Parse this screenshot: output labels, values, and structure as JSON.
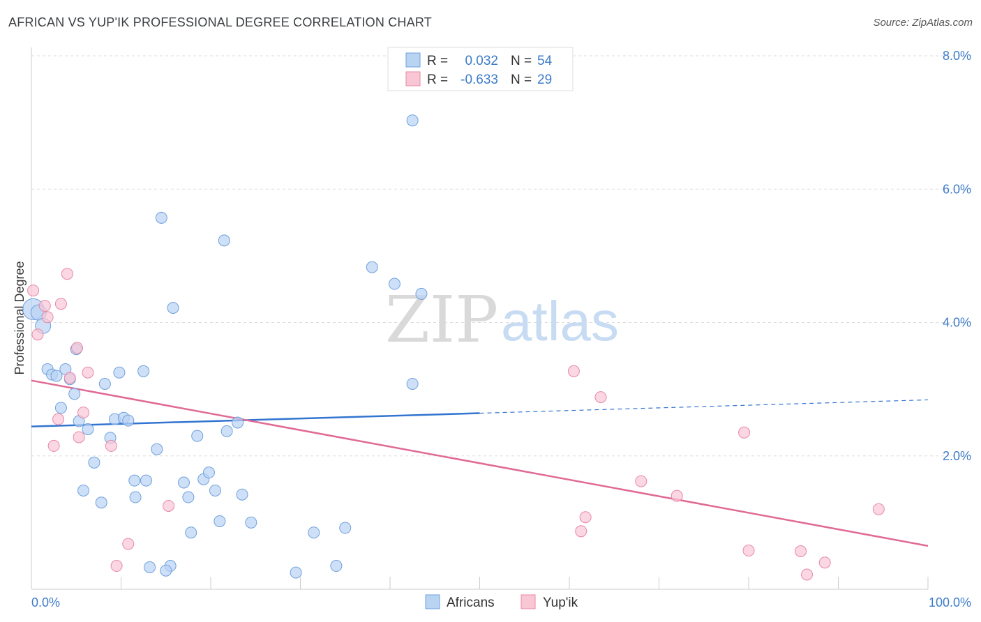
{
  "header": {
    "title": "AFRICAN VS YUP'IK PROFESSIONAL DEGREE CORRELATION CHART",
    "source": "Source: ZipAtlas.com"
  },
  "watermark": {
    "zip": "ZIP",
    "atlas": "atlas"
  },
  "colors": {
    "africans_fill": "#b9d3f3",
    "africans_stroke": "#6fa0dc",
    "africans_line": "#3274d0",
    "yupik_fill": "#f8c6d5",
    "yupik_stroke": "#e889a6",
    "yupik_line": "#e06a95",
    "tick": "#3d7cc9",
    "grid": "#dddddd"
  },
  "legend": {
    "rows": [
      {
        "r_label": "R =",
        "r_value": "0.032",
        "n_label": "N =",
        "n_value": "54"
      },
      {
        "r_label": "R =",
        "r_value": "-0.633",
        "n_label": "N =",
        "n_value": "29"
      }
    ]
  },
  "chart_data": {
    "type": "scatter",
    "title": "AFRICAN VS YUP'IK PROFESSIONAL DEGREE CORRELATION CHART",
    "xlabel": "",
    "ylabel": "Professional Degree",
    "xlim": [
      0,
      100
    ],
    "ylim": [
      0,
      8
    ],
    "x_tick_labels": [
      "0.0%",
      "100.0%"
    ],
    "y_ticks": [
      2,
      4,
      6,
      8
    ],
    "y_tick_labels": [
      "2.0%",
      "4.0%",
      "6.0%",
      "8.0%"
    ],
    "grid": true,
    "series": [
      {
        "name": "Africans",
        "trend": {
          "x": [
            0,
            50,
            100
          ],
          "y": [
            2.44,
            2.64,
            2.84
          ],
          "solid_until": 50
        },
        "points": [
          [
            0.2,
            4.2
          ],
          [
            0.8,
            4.15
          ],
          [
            1.3,
            3.95
          ],
          [
            1.8,
            3.3
          ],
          [
            2.3,
            3.22
          ],
          [
            2.8,
            3.2
          ],
          [
            3.3,
            2.72
          ],
          [
            3.8,
            3.3
          ],
          [
            4.3,
            3.15
          ],
          [
            4.8,
            2.93
          ],
          [
            5.0,
            3.6
          ],
          [
            5.3,
            2.52
          ],
          [
            5.8,
            1.48
          ],
          [
            6.3,
            2.4
          ],
          [
            7.0,
            1.9
          ],
          [
            7.8,
            1.3
          ],
          [
            8.2,
            3.08
          ],
          [
            8.8,
            2.27
          ],
          [
            9.3,
            2.55
          ],
          [
            9.8,
            3.25
          ],
          [
            10.3,
            2.57
          ],
          [
            10.8,
            2.53
          ],
          [
            11.5,
            1.63
          ],
          [
            11.6,
            1.38
          ],
          [
            12.5,
            3.27
          ],
          [
            12.8,
            1.63
          ],
          [
            13.2,
            0.33
          ],
          [
            14.0,
            2.1
          ],
          [
            14.5,
            5.57
          ],
          [
            15.5,
            0.35
          ],
          [
            15.0,
            0.28
          ],
          [
            15.8,
            4.22
          ],
          [
            17.0,
            1.6
          ],
          [
            17.5,
            1.38
          ],
          [
            17.8,
            0.85
          ],
          [
            18.5,
            2.3
          ],
          [
            19.2,
            1.65
          ],
          [
            19.8,
            1.75
          ],
          [
            20.5,
            1.48
          ],
          [
            21.0,
            1.02
          ],
          [
            21.5,
            5.23
          ],
          [
            21.8,
            2.37
          ],
          [
            23.0,
            2.5
          ],
          [
            23.5,
            1.42
          ],
          [
            24.5,
            1.0
          ],
          [
            29.5,
            0.25
          ],
          [
            31.5,
            0.85
          ],
          [
            34.0,
            0.35
          ],
          [
            35.0,
            0.92
          ],
          [
            38.0,
            4.83
          ],
          [
            40.5,
            4.58
          ],
          [
            42.5,
            3.08
          ],
          [
            42.5,
            7.03
          ],
          [
            43.5,
            4.43
          ]
        ]
      },
      {
        "name": "Yup'ik",
        "trend": {
          "x": [
            0,
            100
          ],
          "y": [
            3.13,
            0.65
          ]
        },
        "points": [
          [
            0.2,
            4.48
          ],
          [
            0.7,
            3.82
          ],
          [
            1.5,
            4.25
          ],
          [
            1.8,
            4.08
          ],
          [
            2.5,
            2.15
          ],
          [
            3.0,
            2.55
          ],
          [
            3.3,
            4.28
          ],
          [
            4.0,
            4.73
          ],
          [
            4.3,
            3.17
          ],
          [
            5.1,
            3.62
          ],
          [
            5.3,
            2.28
          ],
          [
            5.8,
            2.65
          ],
          [
            6.3,
            3.25
          ],
          [
            8.9,
            2.15
          ],
          [
            9.5,
            0.35
          ],
          [
            10.8,
            0.68
          ],
          [
            15.3,
            1.25
          ],
          [
            60.5,
            3.27
          ],
          [
            61.3,
            0.87
          ],
          [
            61.8,
            1.08
          ],
          [
            63.5,
            2.88
          ],
          [
            68.0,
            1.62
          ],
          [
            72.0,
            1.4
          ],
          [
            79.5,
            2.35
          ],
          [
            80.0,
            0.58
          ],
          [
            85.8,
            0.57
          ],
          [
            86.5,
            0.22
          ],
          [
            88.5,
            0.4
          ],
          [
            94.5,
            1.2
          ]
        ]
      }
    ]
  }
}
